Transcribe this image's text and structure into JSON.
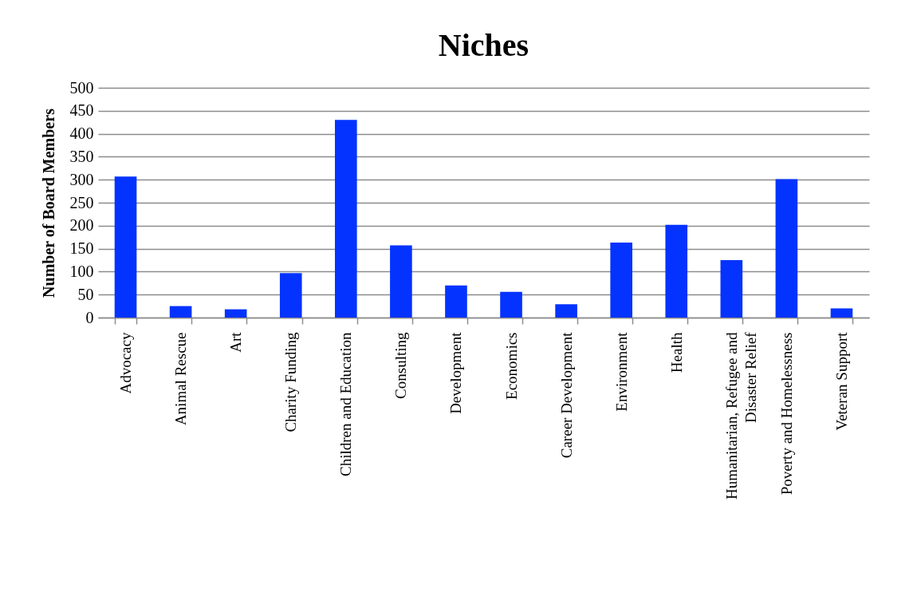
{
  "chart_data": {
    "type": "bar",
    "title": "Niches",
    "ylabel": "Number of Board Members",
    "categories": [
      "Advocacy",
      "Animal Rescue",
      "Art",
      "Charity Funding",
      "Children and Education",
      "Consulting",
      "Development",
      "Economics",
      "Career Development",
      "Environment",
      "Health",
      "Humanitarian, Refugee and Disaster Relief",
      "Poverty and Homelessness",
      "Veteran Support"
    ],
    "values": [
      307,
      25,
      18,
      97,
      430,
      157,
      70,
      56,
      29,
      163,
      202,
      125,
      301,
      20
    ],
    "color": "#0433ff",
    "ylim": [
      0,
      500
    ],
    "yticks": [
      0,
      50,
      100,
      150,
      200,
      250,
      300,
      350,
      400,
      450,
      500
    ],
    "grid": "y"
  }
}
